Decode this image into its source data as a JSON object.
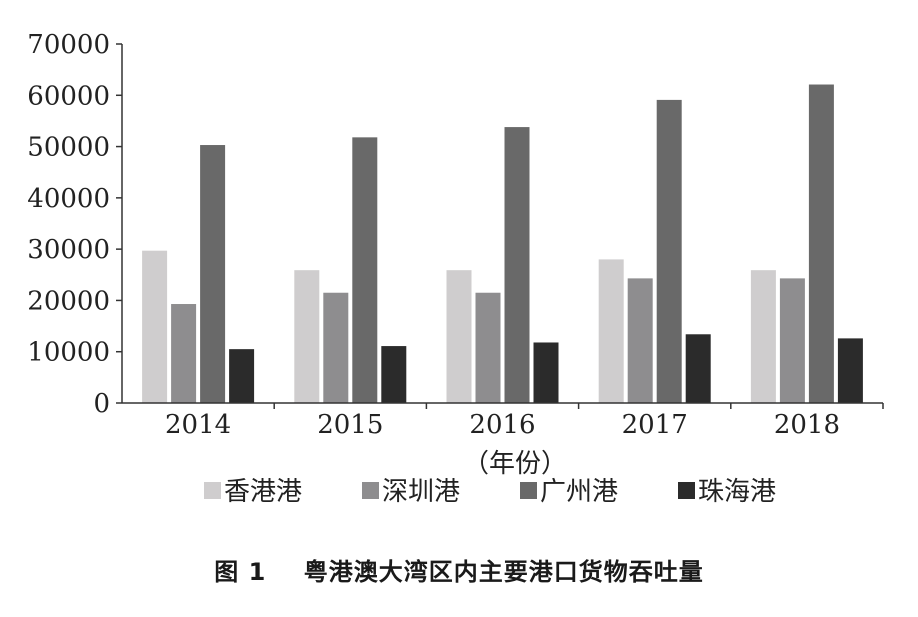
{
  "caption": "图 1    粤港澳大湾区内主要港口货物吞吐量",
  "chart_data": {
    "type": "bar",
    "categories": [
      "2014",
      "2015",
      "2016",
      "2017",
      "2018"
    ],
    "xlabel": "（年份）",
    "ylabel": "",
    "ylim": [
      0,
      70000
    ],
    "yticks": [
      "0",
      "10000",
      "20000",
      "30000",
      "40000",
      "50000",
      "60000",
      "70000"
    ],
    "grid": false,
    "legend_position": "bottom",
    "series": [
      {
        "name": "香港港",
        "color": "#cfcdce",
        "values": [
          29700,
          25900,
          25900,
          28000,
          25900
        ]
      },
      {
        "name": "深圳港",
        "color": "#8e8d8f",
        "values": [
          19300,
          21500,
          21500,
          24300,
          24300
        ]
      },
      {
        "name": "广州港",
        "color": "#696969",
        "values": [
          50300,
          51800,
          53800,
          59100,
          62100
        ]
      },
      {
        "name": "珠海港",
        "color": "#2b2b2b",
        "values": [
          10500,
          11100,
          11800,
          13400,
          12600
        ]
      }
    ]
  }
}
